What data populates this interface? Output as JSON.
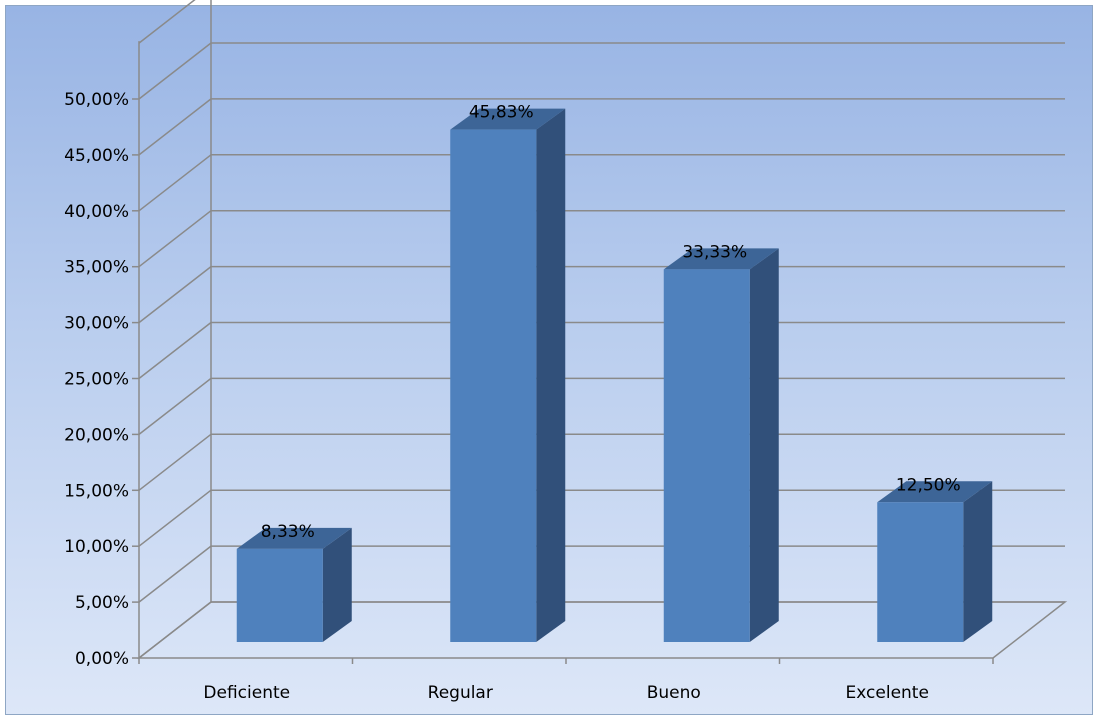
{
  "chart_data": {
    "type": "bar",
    "categories": [
      "Deficiente",
      "Regular",
      "Bueno",
      "Excelente"
    ],
    "values": [
      8.33,
      45.83,
      33.33,
      12.5
    ],
    "data_labels": [
      "8,33%",
      "45,83%",
      "33,33%",
      "12,50%"
    ],
    "y_ticks": [
      0,
      5,
      10,
      15,
      20,
      25,
      30,
      35,
      40,
      45,
      50
    ],
    "y_tick_labels": [
      "0,00%",
      "5,00%",
      "10,00%",
      "15,00%",
      "20,00%",
      "25,00%",
      "30,00%",
      "35,00%",
      "40,00%",
      "45,00%",
      "50,00%"
    ],
    "ylim": [
      0,
      55
    ],
    "grid": true,
    "style": "3d-column",
    "title": "",
    "xlabel": "",
    "ylabel": "",
    "colors": {
      "bar_front": "#4f81bd",
      "bar_side": "#31507a",
      "bar_top": "#3d6597",
      "gridline": "#8a8a8a"
    }
  }
}
